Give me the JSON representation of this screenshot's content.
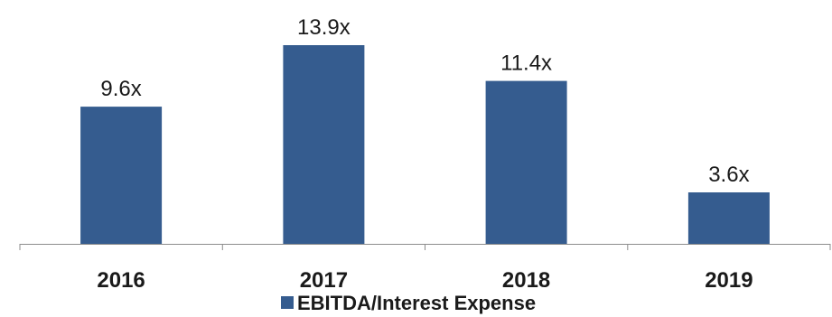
{
  "chart_data": {
    "type": "bar",
    "categories": [
      "2016",
      "2017",
      "2018",
      "2019"
    ],
    "series": [
      {
        "name": "EBITDA/Interest Expense",
        "values": [
          9.6,
          13.9,
          11.4,
          3.6
        ],
        "labels": [
          "9.6x",
          "13.9x",
          "11.4x",
          "3.6x"
        ],
        "color": "#355C8F"
      }
    ],
    "ylim": [
      0,
      15
    ],
    "grid": false,
    "legend": "bottom-center",
    "title": "",
    "xlabel": "",
    "ylabel": ""
  }
}
